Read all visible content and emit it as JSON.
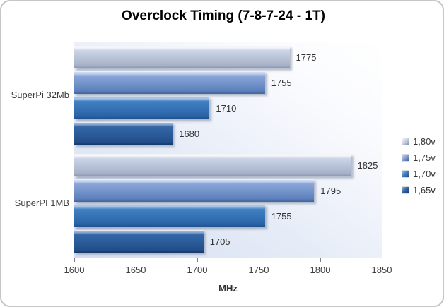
{
  "title": "Overclock Timing (7-8-7-24 - 1T)",
  "chart_data": {
    "type": "bar",
    "orientation": "horizontal",
    "title": "Overclock Timing (7-8-7-24 - 1T)",
    "categories": [
      "SuperPi 32Mb",
      "SuperPI 1MB"
    ],
    "series": [
      {
        "name": "1,80v",
        "values": [
          1775,
          1825
        ],
        "colors": {
          "highlight": "#f2f5fa",
          "top": "#ccd5e6",
          "bottom": "#a6b1c9",
          "edge": "#8693ad"
        }
      },
      {
        "name": "1,75v",
        "values": [
          1755,
          1795
        ],
        "colors": {
          "highlight": "#cdd9f0",
          "top": "#8aa6d8",
          "bottom": "#5c80bc",
          "edge": "#42659c"
        }
      },
      {
        "name": "1,70v",
        "values": [
          1710,
          1755
        ],
        "colors": {
          "highlight": "#a6c4e6",
          "top": "#4180c4",
          "bottom": "#2a63a6",
          "edge": "#1c4d87"
        }
      },
      {
        "name": "1,65v",
        "values": [
          1680,
          1705
        ],
        "colors": {
          "highlight": "#96b2d8",
          "top": "#3467a8",
          "bottom": "#224f8a",
          "edge": "#15396b"
        }
      }
    ],
    "xlabel": "MHz",
    "xlim": [
      1600,
      1850
    ],
    "xticks": [
      1600,
      1650,
      1700,
      1750,
      1800,
      1850
    ],
    "data_labels_shown": true,
    "legend_position": "right",
    "grid": false,
    "axis_color": "#7f7f7f",
    "plot_bg_gradient": [
      "#d5ddf0",
      "#ffffff"
    ]
  }
}
